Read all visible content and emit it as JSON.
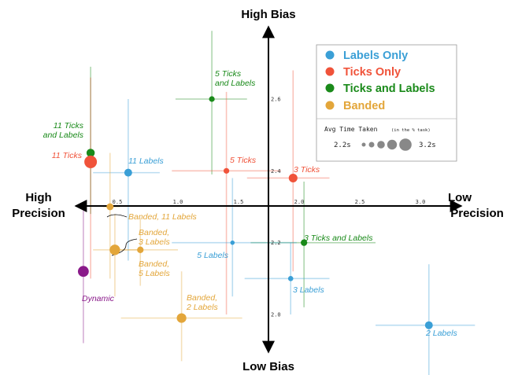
{
  "chart_data": {
    "type": "scatter",
    "axis_titles": {
      "top": "High Bias",
      "bottom": "Low Bias",
      "left": [
        "High",
        "Precision"
      ],
      "right": [
        "Low",
        "Precision"
      ]
    },
    "x_ticks": [
      "0.5",
      "1.0",
      "1.5",
      "2.0",
      "2.5",
      "3.0"
    ],
    "y_ticks": [
      "2.6",
      "2.4",
      "2.2",
      "2.0"
    ],
    "legend": {
      "position": "top-right",
      "items": [
        {
          "label": "Labels Only",
          "color": "#3a9fd6"
        },
        {
          "label": "Ticks Only",
          "color": "#f0533a"
        },
        {
          "label": "Ticks and Labels",
          "color": "#1a8a1a"
        },
        {
          "label": "Banded",
          "color": "#e3a63a"
        }
      ],
      "size_title": "Avg Time Taken",
      "size_title_small": "(in the % task)",
      "size_min_label": "2.2s",
      "size_max_label": "3.2s"
    },
    "colors": {
      "labels": "#3a9fd6",
      "ticks": "#f0533a",
      "ticks_labels": "#1a8a1a",
      "banded": "#e3a63a",
      "dynamic": "#8a1a8a"
    },
    "points": [
      {
        "label": "11 Ticks and Labels",
        "lines": [
          "11 Ticks",
          "and Labels"
        ],
        "group": "ticks_labels",
        "x": 0.28,
        "y": 2.45,
        "xerr": [
          0.28,
          0.28
        ],
        "yerr": [
          2.28,
          2.69
        ],
        "time": 2.7
      },
      {
        "label": "11 Ticks",
        "lines": [
          "11 Ticks"
        ],
        "group": "ticks",
        "x": 0.28,
        "y": 2.425,
        "xerr": [
          0.28,
          0.28
        ],
        "yerr": [
          2.1,
          2.66
        ],
        "time": 3.2
      },
      {
        "label": "11 Labels",
        "lines": [
          "11 Labels"
        ],
        "group": "labels",
        "x": 0.59,
        "y": 2.395,
        "xerr": [
          0.3,
          0.85
        ],
        "yerr": [
          2.15,
          2.6
        ],
        "time": 2.65
      },
      {
        "label": "5 Ticks and Labels",
        "lines": [
          "5 Ticks",
          "and Labels"
        ],
        "group": "ticks_labels",
        "x": 1.28,
        "y": 2.6,
        "xerr": [
          0.98,
          1.57
        ],
        "yerr": [
          2.39,
          2.79
        ],
        "time": 2.4
      },
      {
        "label": "5 Ticks",
        "lines": [
          "5 Ticks"
        ],
        "group": "ticks",
        "x": 1.4,
        "y": 2.4,
        "xerr": [
          0.95,
          1.85
        ],
        "yerr": [
          2.0,
          2.62
        ],
        "time": 2.4
      },
      {
        "label": "3 Ticks",
        "lines": [
          "3 Ticks"
        ],
        "group": "ticks",
        "x": 1.95,
        "y": 2.38,
        "xerr": [
          1.57,
          2.25
        ],
        "yerr": [
          2.12,
          2.68
        ],
        "time": 2.75
      },
      {
        "label": "3 Ticks and Labels",
        "lines": [
          "3 Ticks and Labels"
        ],
        "group": "ticks_labels",
        "x": 2.04,
        "y": 2.2,
        "xerr": [
          1.6,
          2.63
        ],
        "yerr": [
          2.02,
          2.37
        ],
        "time": 2.5
      },
      {
        "label": "5 Labels",
        "lines": [
          "5 Labels"
        ],
        "group": "labels",
        "x": 1.45,
        "y": 2.2,
        "xerr": [
          0.95,
          1.98
        ],
        "yerr": [
          2.05,
          2.38
        ],
        "time": 2.25
      },
      {
        "label": "3 Labels",
        "lines": [
          "3 Labels"
        ],
        "group": "labels",
        "x": 1.93,
        "y": 2.1,
        "xerr": [
          1.55,
          2.25
        ],
        "yerr": [
          2.0,
          2.2
        ],
        "time": 2.35
      },
      {
        "label": "2 Labels",
        "lines": [
          "2 Labels"
        ],
        "group": "labels",
        "x": 3.07,
        "y": 1.97,
        "xerr": [
          2.63,
          3.45
        ],
        "yerr": [
          1.8,
          2.14
        ],
        "time": 2.65
      },
      {
        "label": "Banded, 11 Labels",
        "lines": [
          "Banded, 11 Labels"
        ],
        "group": "banded",
        "x": 0.44,
        "y": 2.3,
        "xerr": [
          0.38,
          0.52
        ],
        "yerr": [
          2.1,
          2.45
        ],
        "time": 2.55
      },
      {
        "label": "Banded, 3 Labels",
        "lines": [
          "Banded,",
          "3 Labels"
        ],
        "group": "banded",
        "x": 0.48,
        "y": 2.18,
        "xerr": [
          0.3,
          0.7
        ],
        "yerr": [
          2.05,
          2.28
        ],
        "time": 2.95
      },
      {
        "label": "Banded, 5 Labels",
        "lines": [
          "Banded,",
          "5 Labels"
        ],
        "group": "banded",
        "x": 0.69,
        "y": 2.18,
        "xerr": [
          0.48,
          1.0
        ],
        "yerr": [
          2.08,
          2.27
        ],
        "time": 2.5
      },
      {
        "label": "Banded, 2 Labels",
        "lines": [
          "Banded,",
          "2 Labels"
        ],
        "group": "banded",
        "x": 1.03,
        "y": 1.99,
        "xerr": [
          0.53,
          1.53
        ],
        "yerr": [
          1.87,
          2.12
        ],
        "time": 2.85
      },
      {
        "label": "Dynamic",
        "lines": [
          "Dynamic"
        ],
        "group": "dynamic",
        "x": 0.22,
        "y": 2.12,
        "xerr": [
          0.22,
          0.22
        ],
        "yerr": [
          1.92,
          2.29
        ],
        "time": 3.0
      }
    ]
  }
}
